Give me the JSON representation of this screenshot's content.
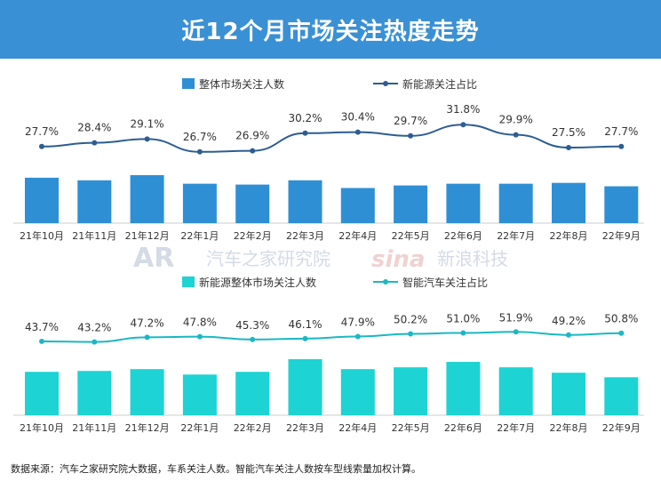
{
  "header": {
    "title": "近12个月市场关注热度走势"
  },
  "watermarks": {
    "left": "汽车之家研究院",
    "right": "新浪科技"
  },
  "footer": {
    "note": "数据来源：汽车之家研究院大数据，车系关注人数。智能汽车关注人数按车型线索量加权计算。"
  },
  "colors": {
    "header_bg": "#3a90d4",
    "bar_top": "#2f8fd5",
    "line_top": "#2d5d91",
    "bar_bottom": "#1dd3d3",
    "line_bottom": "#1ab8c4"
  },
  "chart_data": [
    {
      "type": "bar",
      "categories": [
        "21年10月",
        "21年11月",
        "21年12月",
        "22年1月",
        "22年2月",
        "22年3月",
        "22年4月",
        "22年5月",
        "22年6月",
        "22年7月",
        "22年8月",
        "22年9月"
      ],
      "series": [
        {
          "name": "整体市场关注人数",
          "type": "bar",
          "values": [
            53,
            50,
            56,
            46,
            45,
            50,
            41,
            44,
            46,
            46,
            47,
            43
          ]
        },
        {
          "name": "新能源关注占比",
          "type": "line",
          "values": [
            27.7,
            28.4,
            29.1,
            26.7,
            26.9,
            30.2,
            30.4,
            29.7,
            31.8,
            29.9,
            27.5,
            27.7
          ],
          "labels": [
            "27.7%",
            "28.4%",
            "29.1%",
            "26.7%",
            "26.9%",
            "30.2%",
            "30.4%",
            "29.7%",
            "31.8%",
            "29.9%",
            "27.5%",
            "27.7%"
          ]
        }
      ],
      "legend_position": "top"
    },
    {
      "type": "bar",
      "categories": [
        "21年10月",
        "21年11月",
        "21年12月",
        "22年1月",
        "22年2月",
        "22年3月",
        "22年4月",
        "22年5月",
        "22年6月",
        "22年7月",
        "22年8月",
        "22年9月"
      ],
      "series": [
        {
          "name": "新能源整体市场关注人数",
          "type": "bar",
          "values": [
            48,
            49,
            51,
            45,
            48,
            62,
            51,
            53,
            59,
            53,
            47,
            42
          ]
        },
        {
          "name": "智能汽车关注占比",
          "type": "line",
          "values": [
            43.7,
            43.2,
            47.2,
            47.8,
            45.3,
            46.1,
            47.9,
            50.2,
            51.0,
            51.9,
            49.2,
            50.8
          ],
          "labels": [
            "43.7%",
            "43.2%",
            "47.2%",
            "47.8%",
            "45.3%",
            "46.1%",
            "47.9%",
            "50.2%",
            "51.0%",
            "51.9%",
            "49.2%",
            "50.8%"
          ]
        }
      ],
      "legend_position": "top"
    }
  ]
}
